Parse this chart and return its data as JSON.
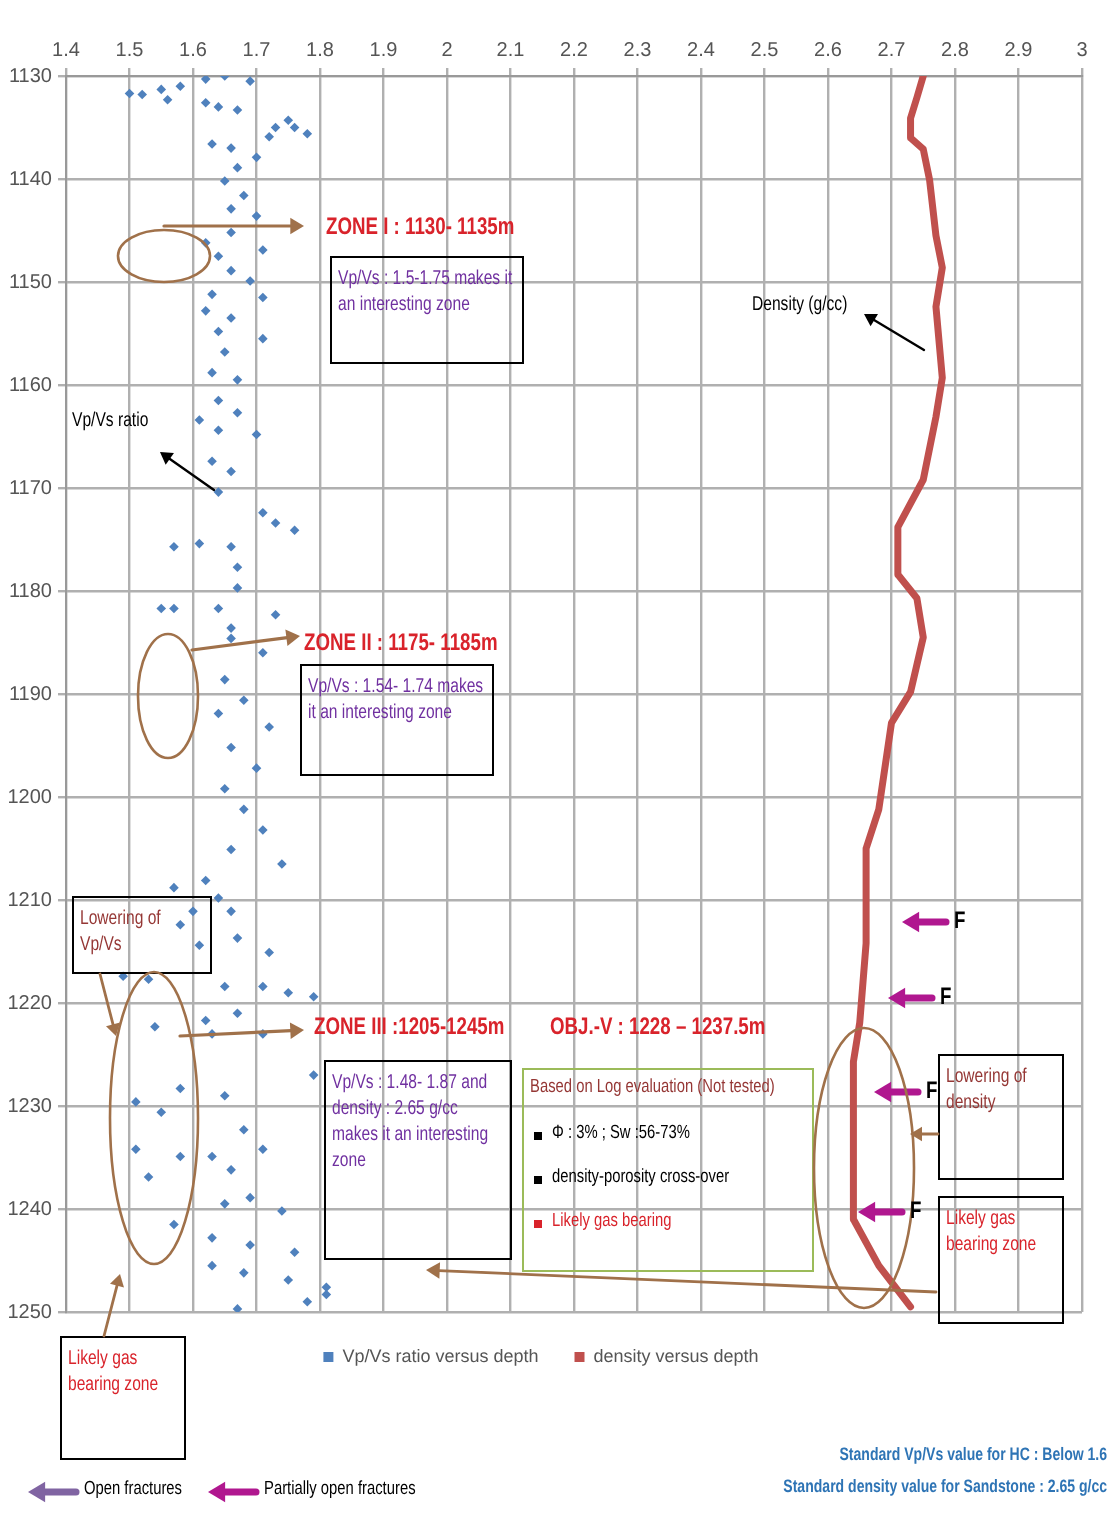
{
  "chart_data": {
    "type": "scatter",
    "xlim": [
      1.4,
      3.0
    ],
    "xticks": [
      1.4,
      1.5,
      1.6,
      1.7,
      1.8,
      1.9,
      2,
      2.1,
      2.2,
      2.3,
      2.4,
      2.5,
      2.6,
      2.7,
      2.8,
      2.9,
      3
    ],
    "ylim": [
      1250,
      1130
    ],
    "yticks": [
      1130,
      1140,
      1150,
      1160,
      1170,
      1180,
      1190,
      1200,
      1210,
      1220,
      1230,
      1240,
      1250
    ],
    "grid": true,
    "legend": "bottom",
    "series": [
      {
        "name": "Vp/Vs ratio versus depth",
        "marker": "diamond",
        "color": "#4f81bd",
        "x": [
          1.5,
          1.52,
          1.55,
          1.56,
          1.58,
          1.62,
          1.65,
          1.69,
          1.62,
          1.64,
          1.67,
          1.73,
          1.75,
          1.76,
          1.78,
          1.72,
          1.63,
          1.66,
          1.7,
          1.67,
          1.65,
          1.68,
          1.66,
          1.7,
          1.66,
          1.62,
          1.64,
          1.71,
          1.66,
          1.69,
          1.63,
          1.71,
          1.62,
          1.66,
          1.64,
          1.71,
          1.65,
          1.63,
          1.67,
          1.64,
          1.61,
          1.67,
          1.64,
          1.7,
          1.63,
          1.66,
          1.64,
          1.71,
          1.73,
          1.76,
          1.57,
          1.61,
          1.66,
          1.67,
          1.67,
          1.55,
          1.57,
          1.64,
          1.73,
          1.66,
          1.66,
          1.71,
          1.65,
          1.68,
          1.64,
          1.72,
          1.66,
          1.7,
          1.65,
          1.68,
          1.71,
          1.66,
          1.74,
          1.57,
          1.62,
          1.6,
          1.64,
          1.58,
          1.66,
          1.61,
          1.67,
          1.72,
          1.49,
          1.53,
          1.65,
          1.71,
          1.75,
          1.79,
          1.54,
          1.62,
          1.67,
          1.63,
          1.71,
          1.79,
          1.51,
          1.55,
          1.58,
          1.65,
          1.68,
          1.51,
          1.53,
          1.58,
          1.63,
          1.66,
          1.71,
          1.65,
          1.69,
          1.74,
          1.57,
          1.63,
          1.69,
          1.76,
          1.63,
          1.68,
          1.75,
          1.81,
          1.81,
          1.67,
          1.78
        ],
        "values": [
          1131.7,
          1131.8,
          1131.3,
          1132.3,
          1131.0,
          1130.3,
          1130.0,
          1130.5,
          1132.6,
          1133.0,
          1133.3,
          1135.0,
          1134.3,
          1135.0,
          1135.6,
          1135.9,
          1136.6,
          1137.0,
          1137.9,
          1138.9,
          1140.2,
          1141.6,
          1142.9,
          1143.6,
          1145.2,
          1146.2,
          1147.5,
          1146.9,
          1148.9,
          1149.9,
          1151.2,
          1151.5,
          1152.8,
          1153.5,
          1154.8,
          1155.5,
          1156.8,
          1158.8,
          1159.5,
          1161.5,
          1163.4,
          1162.7,
          1164.4,
          1164.8,
          1167.4,
          1168.4,
          1170.4,
          1172.4,
          1173.4,
          1174.1,
          1175.7,
          1175.4,
          1175.7,
          1177.7,
          1179.7,
          1181.7,
          1181.7,
          1181.7,
          1182.3,
          1183.6,
          1184.6,
          1186.0,
          1188.6,
          1190.6,
          1191.9,
          1193.2,
          1195.2,
          1197.2,
          1199.2,
          1201.2,
          1203.2,
          1205.1,
          1206.5,
          1208.8,
          1208.1,
          1211.1,
          1209.8,
          1212.4,
          1211.1,
          1214.4,
          1213.7,
          1215.1,
          1217.4,
          1217.7,
          1218.4,
          1218.4,
          1219.0,
          1219.4,
          1222.3,
          1221.7,
          1221.0,
          1223.0,
          1223.0,
          1227.0,
          1229.6,
          1230.6,
          1228.3,
          1229.0,
          1232.3,
          1234.2,
          1236.9,
          1234.9,
          1234.9,
          1236.2,
          1234.2,
          1239.5,
          1238.9,
          1240.2,
          1241.5,
          1242.8,
          1243.5,
          1244.2,
          1245.5,
          1246.2,
          1246.9,
          1247.6,
          1248.3,
          1249.7,
          1249.0
        ]
      },
      {
        "name": "density versus depth",
        "type": "line",
        "marker": "none",
        "color": "#c0504d",
        "x": [
          2.75,
          2.74,
          2.73,
          2.73,
          2.75,
          2.76,
          2.77,
          2.78,
          2.77,
          2.78,
          2.77,
          2.75,
          2.71,
          2.71,
          2.74,
          2.75,
          2.73,
          2.7,
          2.68,
          2.66,
          2.66,
          2.65,
          2.64,
          2.64,
          2.68,
          2.73
        ],
        "values": [
          1130,
          1132.1,
          1134.1,
          1136,
          1137.1,
          1140.1,
          1145.5,
          1148.6,
          1152.4,
          1159.3,
          1163.1,
          1169.2,
          1173.8,
          1178.4,
          1180.7,
          1184.5,
          1189.8,
          1192.8,
          1201.2,
          1205,
          1214.2,
          1221.9,
          1225.7,
          1241,
          1245.5,
          1249.5
        ]
      }
    ],
    "annotations": [
      "ZONE I : 1130- 1135m",
      "Vp/Vs : 1.5-1.75 makes it an  interesting zone",
      "Vp/Vs ratio",
      "Density (g/cc)",
      "ZONE II : 1175- 1185m",
      "Vp/Vs : 1.54- 1.74 makes it an  interesting zone",
      "ZONE III :1205-1245m",
      "Vp/Vs : 1.48- 1.87 and density : 2.65 g/cc makes it an  interesting zone",
      "OBJ.-V : 1228 – 1237.5m",
      "Based on Log evaluation (Not tested)",
      "Φ : 3% ; Sw :56-73%",
      "density-porosity cross-over",
      "Likely gas bearing",
      "F",
      "F",
      "F",
      "F",
      "Lowering of density",
      "Likely gas bearing zone",
      "Lowering of Vp/Vs",
      "Likely gas bearing zone",
      "Open fractures",
      "Partially open fractures",
      "Standard Vp/Vs value  for HC : Below 1.6",
      "Standard density value for Sandstone : 2.65 g/cc"
    ]
  }
}
